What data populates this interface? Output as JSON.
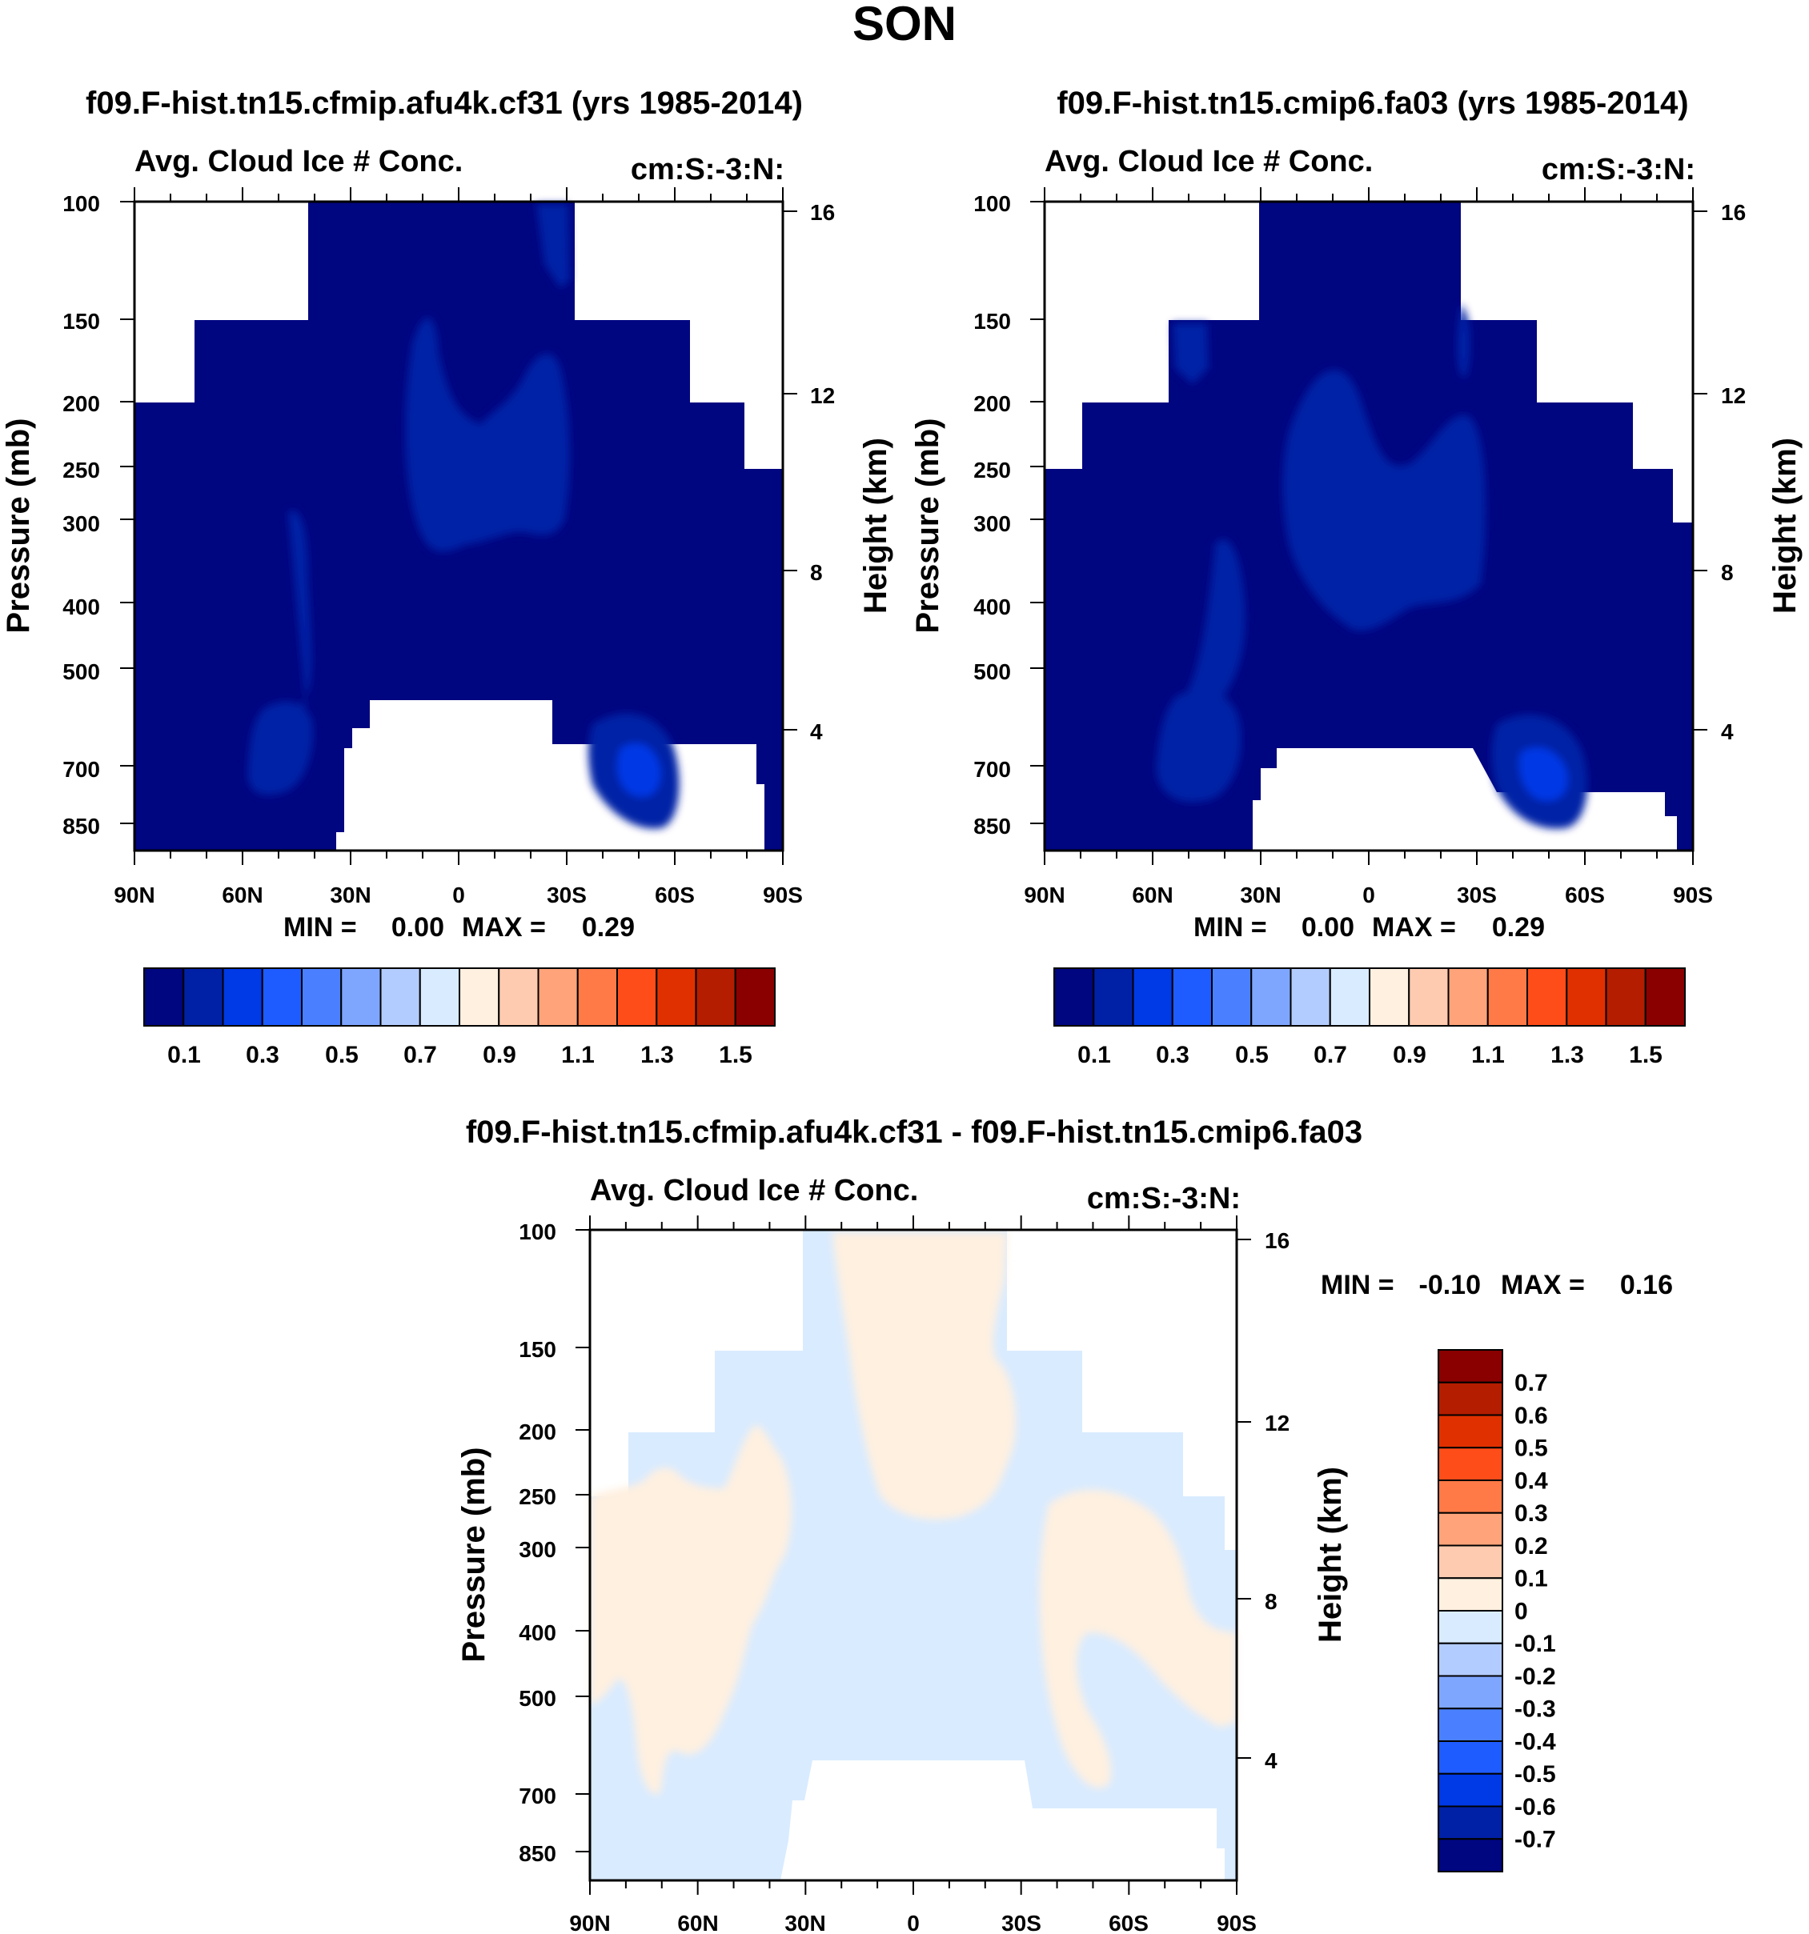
{
  "figure_title": "SON",
  "chart_data": [
    {
      "type": "heatmap",
      "panel": "top-left",
      "title": "f09.F-hist.tn15.cfmip.afu4k.cf31 (yrs 1985-2014)",
      "subtitle_left": "Avg. Cloud Ice # Conc.",
      "subtitle_right": "cm:S:-3:N:",
      "xlabel": "",
      "ylabel": "Pressure (mb)",
      "ylabel_right": "Height (km)",
      "x_ticks": [
        "90N",
        "60N",
        "30N",
        "0",
        "30S",
        "60S",
        "90S"
      ],
      "y_ticks": [
        "100",
        "150",
        "200",
        "250",
        "300",
        "400",
        "500",
        "700",
        "850"
      ],
      "y_ticks_right": [
        "16",
        "12",
        "8",
        "4"
      ],
      "stats": {
        "min_label": "MIN =",
        "min_value": "0.00",
        "max_label": "MAX =",
        "max_value": "0.29"
      },
      "min": 0.0,
      "max": 0.29,
      "colorbar": {
        "orientation": "horizontal",
        "colors": [
          "#000580",
          "#0021a6",
          "#0039e6",
          "#1f5cff",
          "#4a80ff",
          "#7fa6ff",
          "#b3ccff",
          "#d9ebff",
          "#fff0e0",
          "#ffcbb0",
          "#ffa37a",
          "#ff7a47",
          "#ff4d1a",
          "#e03000",
          "#b41d00",
          "#8a0000"
        ],
        "labels": [
          "0.1",
          "0.3",
          "0.5",
          "0.7",
          "0.9",
          "1.1",
          "1.3",
          "1.5"
        ]
      }
    },
    {
      "type": "heatmap",
      "panel": "top-right",
      "title": "f09.F-hist.tn15.cmip6.fa03 (yrs 1985-2014)",
      "subtitle_left": "Avg. Cloud Ice # Conc.",
      "subtitle_right": "cm:S:-3:N:",
      "xlabel": "",
      "ylabel": "Pressure (mb)",
      "ylabel_right": "Height (km)",
      "x_ticks": [
        "90N",
        "60N",
        "30N",
        "0",
        "30S",
        "60S",
        "90S"
      ],
      "y_ticks": [
        "100",
        "150",
        "200",
        "250",
        "300",
        "400",
        "500",
        "700",
        "850"
      ],
      "y_ticks_right": [
        "16",
        "12",
        "8",
        "4"
      ],
      "stats": {
        "min_label": "MIN =",
        "min_value": "0.00",
        "max_label": "MAX =",
        "max_value": "0.29"
      },
      "min": 0.0,
      "max": 0.29,
      "colorbar": {
        "orientation": "horizontal",
        "colors": [
          "#000580",
          "#0021a6",
          "#0039e6",
          "#1f5cff",
          "#4a80ff",
          "#7fa6ff",
          "#b3ccff",
          "#d9ebff",
          "#fff0e0",
          "#ffcbb0",
          "#ffa37a",
          "#ff7a47",
          "#ff4d1a",
          "#e03000",
          "#b41d00",
          "#8a0000"
        ],
        "labels": [
          "0.1",
          "0.3",
          "0.5",
          "0.7",
          "0.9",
          "1.1",
          "1.3",
          "1.5"
        ]
      }
    },
    {
      "type": "heatmap",
      "panel": "bottom",
      "title": "f09.F-hist.tn15.cfmip.afu4k.cf31 - f09.F-hist.tn15.cmip6.fa03",
      "subtitle_left": "Avg. Cloud Ice # Conc.",
      "subtitle_right": "cm:S:-3:N:",
      "xlabel": "",
      "ylabel": "Pressure (mb)",
      "ylabel_right": "Height (km)",
      "x_ticks": [
        "90N",
        "60N",
        "30N",
        "0",
        "30S",
        "60S",
        "90S"
      ],
      "y_ticks": [
        "100",
        "150",
        "200",
        "250",
        "300",
        "400",
        "500",
        "700",
        "850"
      ],
      "y_ticks_right": [
        "16",
        "12",
        "8",
        "4"
      ],
      "stats": {
        "min_label": "MIN =",
        "min_value": "-0.10",
        "max_label": "MAX =",
        "max_value": "0.16"
      },
      "min": -0.1,
      "max": 0.16,
      "colorbar": {
        "orientation": "vertical",
        "colors": [
          "#8a0000",
          "#b41d00",
          "#e03000",
          "#ff4d1a",
          "#ff7a47",
          "#ffa37a",
          "#ffcbb0",
          "#fff0e0",
          "#d9ebff",
          "#b3ccff",
          "#7fa6ff",
          "#4a80ff",
          "#1f5cff",
          "#0039e6",
          "#0021a6",
          "#000580"
        ],
        "labels": [
          "0.7",
          "0.6",
          "0.5",
          "0.4",
          "0.3",
          "0.2",
          "0.1",
          "0",
          "-0.1",
          "-0.2",
          "-0.3",
          "-0.4",
          "-0.5",
          "-0.6",
          "-0.7"
        ]
      }
    }
  ]
}
